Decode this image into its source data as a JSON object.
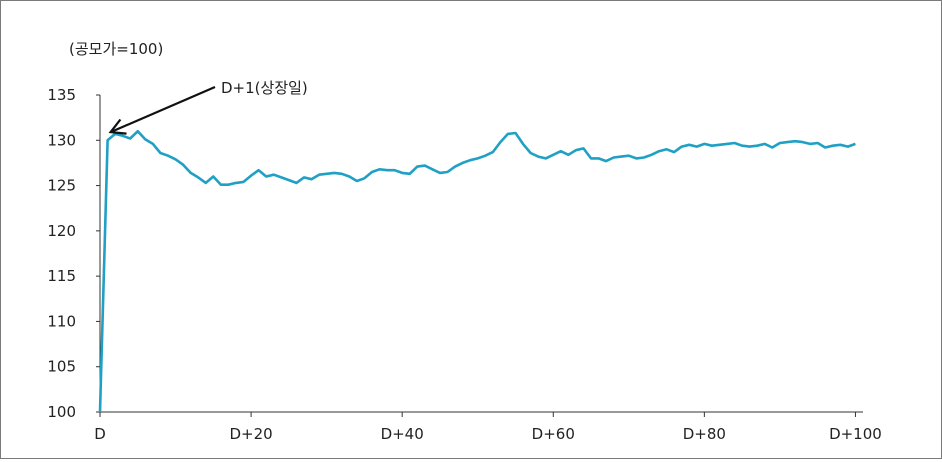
{
  "chart_data": {
    "type": "line",
    "title": "",
    "ylabel": "(공모가=100)",
    "xlabel": "",
    "ylim": [
      100,
      135
    ],
    "xlim": [
      0,
      101
    ],
    "y_ticks": [
      100,
      105,
      110,
      115,
      120,
      125,
      130,
      135
    ],
    "x_ticks": [
      {
        "value": 0,
        "label": "D"
      },
      {
        "value": 20,
        "label": "D+20"
      },
      {
        "value": 40,
        "label": "D+40"
      },
      {
        "value": 60,
        "label": "D+60"
      },
      {
        "value": 80,
        "label": "D+80"
      },
      {
        "value": 100,
        "label": "D+100"
      }
    ],
    "grid": false,
    "annotation": {
      "text": "D+1(상장일)",
      "x": 1,
      "y": 130.9
    },
    "line_color": "#1fa0c4",
    "series": [
      {
        "name": "",
        "x": [
          0,
          1,
          2,
          3,
          4,
          5,
          6,
          7,
          8,
          9,
          10,
          11,
          12,
          13,
          14,
          15,
          16,
          17,
          18,
          19,
          20,
          21,
          22,
          23,
          24,
          25,
          26,
          27,
          28,
          29,
          30,
          31,
          32,
          33,
          34,
          35,
          36,
          37,
          38,
          39,
          40,
          41,
          42,
          43,
          44,
          45,
          46,
          47,
          48,
          49,
          50,
          51,
          52,
          53,
          54,
          55,
          56,
          57,
          58,
          59,
          60,
          61,
          62,
          63,
          64,
          65,
          66,
          67,
          68,
          69,
          70,
          71,
          72,
          73,
          74,
          75,
          76,
          77,
          78,
          79,
          80,
          81,
          82,
          83,
          84,
          85,
          86,
          87,
          88,
          89,
          90,
          91,
          92,
          93,
          94,
          95,
          96,
          97,
          98,
          99,
          100
        ],
        "values": [
          100,
          130.0,
          130.7,
          130.5,
          130.2,
          131.0,
          130.1,
          129.6,
          128.6,
          128.3,
          127.9,
          127.3,
          126.4,
          125.9,
          125.3,
          126.0,
          125.1,
          125.1,
          125.3,
          125.4,
          126.1,
          126.7,
          126.0,
          126.2,
          125.9,
          125.6,
          125.3,
          125.9,
          125.7,
          126.2,
          126.3,
          126.4,
          126.3,
          126.0,
          125.5,
          125.8,
          126.5,
          126.8,
          126.7,
          126.7,
          126.4,
          126.3,
          127.1,
          127.2,
          126.8,
          126.4,
          126.5,
          127.1,
          127.5,
          127.8,
          128.0,
          128.3,
          128.7,
          129.8,
          130.7,
          130.8,
          129.6,
          128.6,
          128.2,
          128.0,
          128.4,
          128.8,
          128.4,
          128.9,
          129.1,
          128.0,
          128.0,
          127.7,
          128.1,
          128.2,
          128.3,
          128.0,
          128.1,
          128.4,
          128.8,
          129.0,
          128.7,
          129.3,
          129.5,
          129.3,
          129.6,
          129.4,
          129.5,
          129.6,
          129.7,
          129.4,
          129.3,
          129.4,
          129.6,
          129.2,
          129.7,
          129.8,
          129.9,
          129.8,
          129.6,
          129.7,
          129.2,
          129.4,
          129.5,
          129.3,
          129.6
        ]
      }
    ]
  }
}
